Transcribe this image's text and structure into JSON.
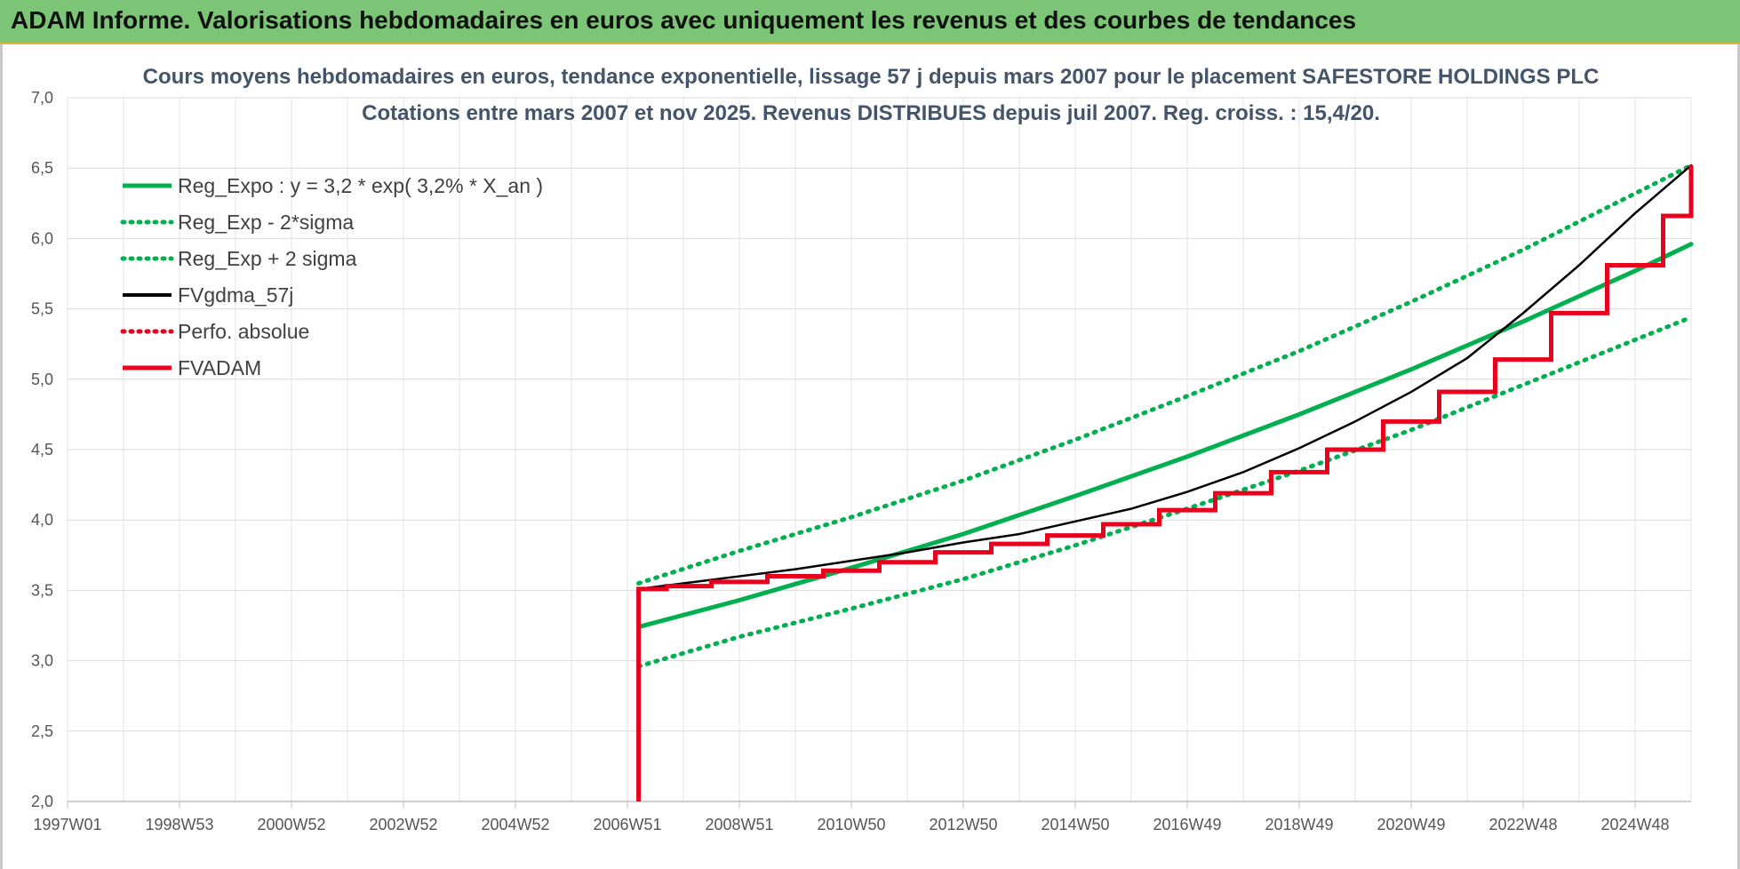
{
  "banner": {
    "title": "ADAM Informe. Valorisations hebdomadaires en euros avec uniquement les revenus et des courbes de tendances"
  },
  "chart_data": {
    "type": "line",
    "title_lines": [
      "Cours moyens hebdomadaires en euros, tendance exponentielle, lissage 57 j depuis mars 2007 pour le placement SAFESTORE HOLDINGS PLC",
      "Cotations entre mars 2007 et nov 2025. Revenus DISTRIBUES depuis juil 2007. Reg. croiss. : 15,4/20."
    ],
    "xlabel": "",
    "ylabel": "",
    "x_tick_labels": [
      "1997W01",
      "1998W53",
      "2000W52",
      "2002W52",
      "2004W52",
      "2006W51",
      "2008W51",
      "2010W50",
      "2012W50",
      "2014W50",
      "2016W49",
      "2018W49",
      "2020W49",
      "2022W48",
      "2024W48"
    ],
    "x_tick_years": [
      1997.0,
      1999.0,
      2001.0,
      2003.0,
      2005.0,
      2007.0,
      2009.0,
      2011.0,
      2013.0,
      2015.0,
      2017.0,
      2019.0,
      2021.0,
      2023.0,
      2025.0
    ],
    "xlim_years": [
      1997.0,
      2026.0
    ],
    "ylim": [
      2.0,
      7.0
    ],
    "y_ticks": [
      2.0,
      2.5,
      3.0,
      3.5,
      4.0,
      4.5,
      5.0,
      5.5,
      6.0,
      6.5,
      7.0
    ],
    "y_tick_labels": [
      "2,0",
      "2,5",
      "3,0",
      "3,5",
      "4,0",
      "4,5",
      "5,0",
      "5,5",
      "6,0",
      "6,5",
      "7,0"
    ],
    "grid": true,
    "legend_position": "top-left",
    "series": [
      {
        "name": "Reg_Expo : y = 3,2 * exp( 3,2% *  X_an )",
        "color": "#00b050",
        "style": "solid",
        "x": [
          2007.2,
          2009,
          2011,
          2013,
          2015,
          2017,
          2019,
          2021,
          2023,
          2025,
          2026
        ],
        "y": [
          3.24,
          3.43,
          3.66,
          3.9,
          4.17,
          4.45,
          4.75,
          5.07,
          5.41,
          5.77,
          5.96
        ]
      },
      {
        "name": "Reg_Exp - 2*sigma",
        "color": "#00b050",
        "style": "dotted",
        "x": [
          2007.2,
          2009,
          2011,
          2013,
          2015,
          2017,
          2019,
          2021,
          2023,
          2025,
          2026
        ],
        "y": [
          2.96,
          3.17,
          3.37,
          3.58,
          3.82,
          4.08,
          4.35,
          4.64,
          4.96,
          5.28,
          5.44
        ]
      },
      {
        "name": "Reg_Exp + 2 sigma",
        "color": "#00b050",
        "style": "dotted",
        "x": [
          2007.2,
          2009,
          2011,
          2013,
          2015,
          2017,
          2019,
          2021,
          2023,
          2025,
          2026
        ],
        "y": [
          3.55,
          3.78,
          4.02,
          4.28,
          4.57,
          4.88,
          5.2,
          5.55,
          5.92,
          6.32,
          6.52
        ]
      },
      {
        "name": "FVgdma_57j",
        "color": "#000000",
        "style": "solid",
        "x": [
          2007.2,
          2008,
          2009,
          2010,
          2011,
          2012,
          2013,
          2014,
          2015,
          2016,
          2017,
          2018,
          2019,
          2020,
          2021,
          2022,
          2023,
          2024,
          2025,
          2026
        ],
        "y": [
          3.51,
          3.55,
          3.6,
          3.65,
          3.71,
          3.77,
          3.84,
          3.9,
          3.99,
          4.08,
          4.2,
          4.34,
          4.51,
          4.7,
          4.91,
          5.15,
          5.47,
          5.81,
          6.18,
          6.52
        ]
      },
      {
        "name": "Perfo. absolue",
        "color": "#e8001c",
        "style": "dotted",
        "x": [],
        "y": []
      },
      {
        "name": "FVADAM",
        "color": "#e8001c",
        "style": "step",
        "x": [
          2007.2,
          2007.2,
          2007.7,
          2008.5,
          2009.5,
          2010.5,
          2011.5,
          2012.5,
          2013.5,
          2014.5,
          2015.5,
          2016.5,
          2017.5,
          2018.5,
          2019.5,
          2020.5,
          2021.5,
          2022.5,
          2023.5,
          2024.5,
          2025.5,
          2026
        ],
        "y": [
          2.0,
          3.51,
          3.53,
          3.56,
          3.6,
          3.64,
          3.7,
          3.77,
          3.83,
          3.89,
          3.97,
          4.07,
          4.19,
          4.34,
          4.5,
          4.7,
          4.91,
          5.14,
          5.47,
          5.81,
          6.16,
          6.52
        ]
      }
    ]
  }
}
